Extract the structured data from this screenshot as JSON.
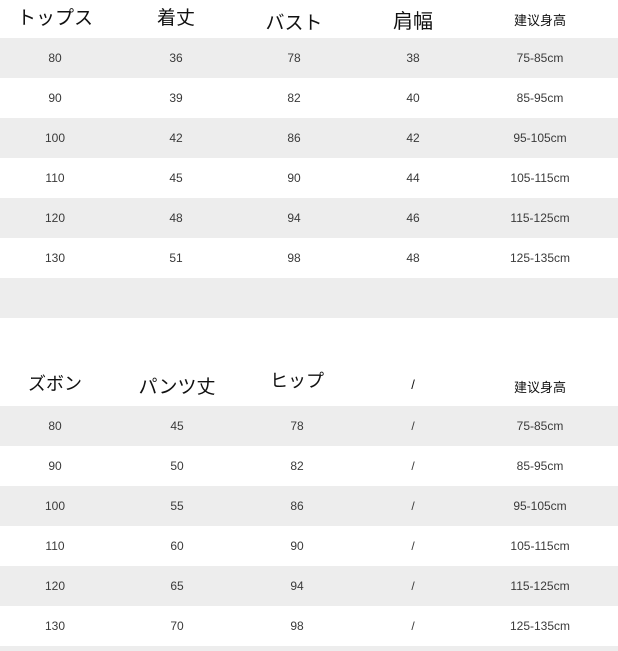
{
  "colors": {
    "stripe": "#ededed",
    "background": "#ffffff"
  },
  "tops": {
    "headers": [
      "トップス",
      "着丈",
      "バスト",
      "肩幅",
      "建议身高"
    ],
    "rows": [
      [
        "80",
        "36",
        "78",
        "38",
        "75-85cm"
      ],
      [
        "90",
        "39",
        "82",
        "40",
        "85-95cm"
      ],
      [
        "100",
        "42",
        "86",
        "42",
        "95-105cm"
      ],
      [
        "110",
        "45",
        "90",
        "44",
        "105-115cm"
      ],
      [
        "120",
        "48",
        "94",
        "46",
        "115-125cm"
      ],
      [
        "130",
        "51",
        "98",
        "48",
        "125-135cm"
      ]
    ]
  },
  "bottoms": {
    "headers": [
      "ズボン",
      "パンツ丈",
      "ヒップ",
      "/",
      "建议身高"
    ],
    "rows": [
      [
        "80",
        "45",
        "78",
        "/",
        "75-85cm"
      ],
      [
        "90",
        "50",
        "82",
        "/",
        "85-95cm"
      ],
      [
        "100",
        "55",
        "86",
        "/",
        "95-105cm"
      ],
      [
        "110",
        "60",
        "90",
        "/",
        "105-115cm"
      ],
      [
        "120",
        "65",
        "94",
        "/",
        "115-125cm"
      ],
      [
        "130",
        "70",
        "98",
        "/",
        "125-135cm"
      ]
    ]
  }
}
